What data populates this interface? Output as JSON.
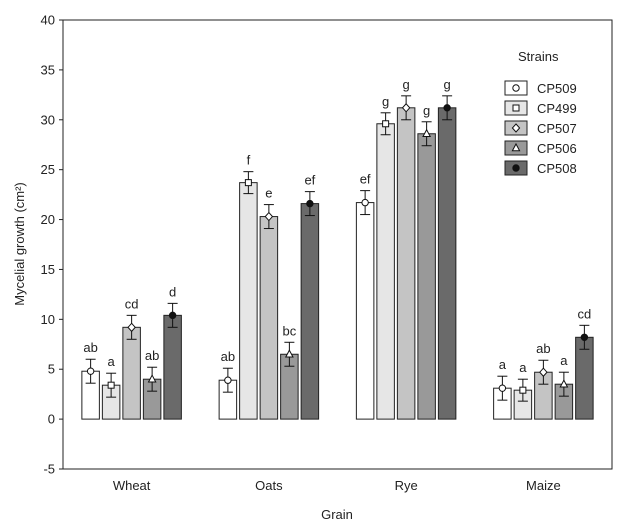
{
  "chart_data": {
    "type": "bar",
    "xlabel": "Grain",
    "ylabel": "Mycelial growth (cm²)",
    "ylim": [
      -5,
      40
    ],
    "yticks": [
      -5,
      0,
      5,
      10,
      15,
      20,
      25,
      30,
      35,
      40
    ],
    "grid": false,
    "categories": [
      "Wheat",
      "Oats",
      "Rye",
      "Maize"
    ],
    "legend": {
      "title": "Strains",
      "placement": "top-right"
    },
    "series": [
      {
        "name": "CP509",
        "fill": "#ffffff",
        "marker": "circle",
        "marker_fill": "#ffffff",
        "values": [
          4.8,
          3.9,
          21.7,
          3.1
        ],
        "errors": [
          1.2,
          1.2,
          1.2,
          1.2
        ],
        "letters": [
          "ab",
          "ab",
          "ef",
          "a"
        ]
      },
      {
        "name": "CP499",
        "fill": "#e6e6e6",
        "marker": "square",
        "marker_fill": "#ffffff",
        "values": [
          3.4,
          23.7,
          29.6,
          2.9
        ],
        "errors": [
          1.2,
          1.1,
          1.1,
          1.1
        ],
        "letters": [
          "a",
          "f",
          "g",
          "a"
        ]
      },
      {
        "name": "CP507",
        "fill": "#c4c4c4",
        "marker": "diamond",
        "marker_fill": "#ffffff",
        "values": [
          9.2,
          20.3,
          31.2,
          4.7
        ],
        "errors": [
          1.2,
          1.2,
          1.2,
          1.2
        ],
        "letters": [
          "cd",
          "e",
          "g",
          "ab"
        ]
      },
      {
        "name": "CP506",
        "fill": "#999999",
        "marker": "triangle",
        "marker_fill": "#ffffff",
        "values": [
          4.0,
          6.5,
          28.6,
          3.5
        ],
        "errors": [
          1.2,
          1.2,
          1.2,
          1.2
        ],
        "letters": [
          "ab",
          "bc",
          "g",
          "a"
        ]
      },
      {
        "name": "CP508",
        "fill": "#6a6a6a",
        "marker": "circle",
        "marker_fill": "#111111",
        "values": [
          10.4,
          21.6,
          31.2,
          8.2
        ],
        "errors": [
          1.2,
          1.2,
          1.2,
          1.2
        ],
        "letters": [
          "d",
          "ef",
          "g",
          "cd"
        ]
      }
    ]
  }
}
